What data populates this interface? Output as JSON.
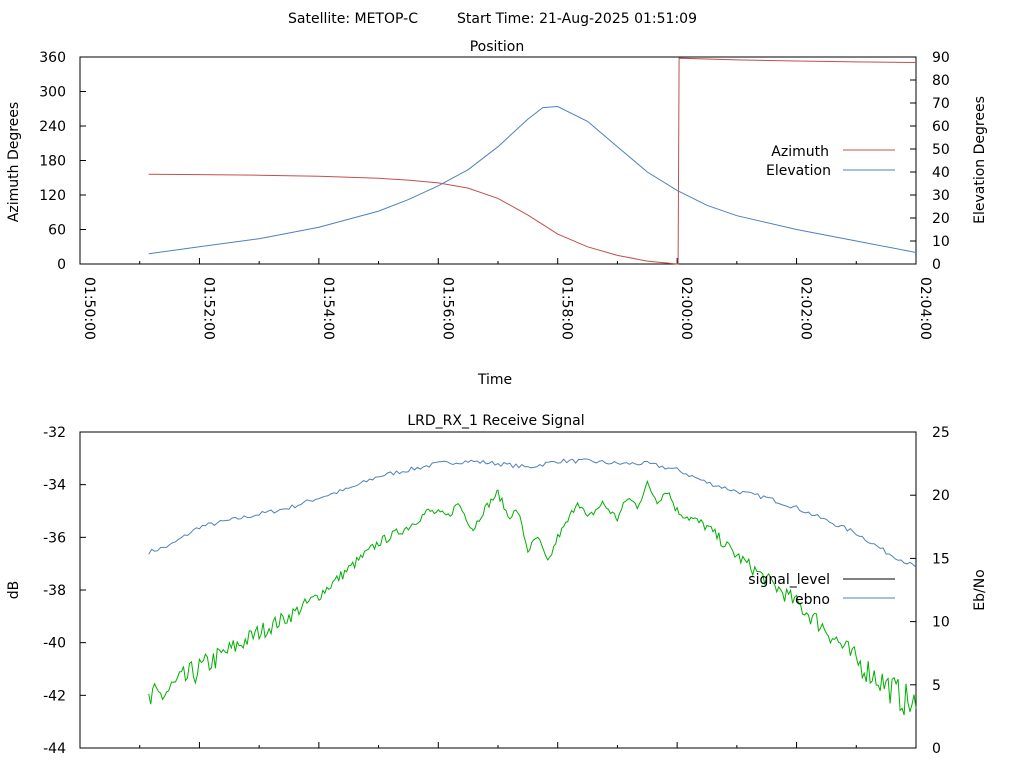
{
  "header": {
    "satellite_text": "Satellite: METOP-C",
    "start_time_text": "Start Time: 21-Aug-2025 01:51:09"
  },
  "colors": {
    "azimuth": "#c0504d",
    "elevation": "#4f81bd",
    "signal_level": "#000000",
    "ebno": "#4f81bd",
    "green_trace": "#00b000",
    "axis": "#000000",
    "background": "#ffffff"
  },
  "chart_data": [
    {
      "type": "line",
      "title": "Position",
      "xlabel": "Time",
      "ylabel": "Azimuth Degrees",
      "y2label": "Elevation Degrees",
      "xlim": [
        "01:50:00",
        "02:04:00"
      ],
      "ylim": [
        0,
        360
      ],
      "y2lim": [
        0,
        90
      ],
      "x_ticks": [
        "01:50:00",
        "01:52:00",
        "01:54:00",
        "01:56:00",
        "01:58:00",
        "02:00:00",
        "02:02:00",
        "02:04:00"
      ],
      "y_ticks": [
        "0",
        "60",
        "120",
        "180",
        "240",
        "300",
        "360"
      ],
      "y2_ticks": [
        "0",
        "10",
        "20",
        "30",
        "40",
        "50",
        "60",
        "70",
        "80",
        "90"
      ],
      "grid": false,
      "legend_position": "right",
      "series": [
        {
          "name": "Azimuth",
          "axis": "left",
          "color": "#c0504d",
          "points": [
            [
              "01:51:09",
              156
            ],
            [
              "01:52:00",
              155.5
            ],
            [
              "01:53:00",
              154.5
            ],
            [
              "01:54:00",
              152.5
            ],
            [
              "01:55:00",
              149
            ],
            [
              "01:55:30",
              146
            ],
            [
              "01:56:00",
              141
            ],
            [
              "01:56:30",
              132
            ],
            [
              "01:57:00",
              114
            ],
            [
              "01:57:30",
              85
            ],
            [
              "01:58:00",
              52
            ],
            [
              "01:58:30",
              30
            ],
            [
              "01:59:00",
              15
            ],
            [
              "01:59:30",
              5
            ],
            [
              "02:00:00",
              0
            ],
            [
              "02:00:01",
              0
            ],
            [
              "02:00:02",
              358
            ],
            [
              "02:01:00",
              355
            ],
            [
              "02:02:00",
              353
            ],
            [
              "02:03:00",
              351.5
            ],
            [
              "02:04:00",
              350.5
            ]
          ]
        },
        {
          "name": "Elevation",
          "axis": "right",
          "color": "#4f81bd",
          "points": [
            [
              "01:51:09",
              4.5
            ],
            [
              "01:52:00",
              7.5
            ],
            [
              "01:53:00",
              11
            ],
            [
              "01:54:00",
              16
            ],
            [
              "01:55:00",
              23
            ],
            [
              "01:55:30",
              28
            ],
            [
              "01:56:00",
              34
            ],
            [
              "01:56:30",
              41
            ],
            [
              "01:57:00",
              51
            ],
            [
              "01:57:30",
              63
            ],
            [
              "01:57:45",
              68
            ],
            [
              "01:58:00",
              68.5
            ],
            [
              "01:58:30",
              62
            ],
            [
              "01:59:00",
              51
            ],
            [
              "01:59:30",
              40
            ],
            [
              "02:00:00",
              32
            ],
            [
              "02:00:30",
              25.5
            ],
            [
              "02:01:00",
              21
            ],
            [
              "02:02:00",
              15
            ],
            [
              "02:03:00",
              10
            ],
            [
              "02:04:00",
              5
            ]
          ]
        }
      ]
    },
    {
      "type": "line",
      "title": "LRD_RX_1 Receive Signal",
      "xlabel": "",
      "ylabel": "dB",
      "y2label": "Eb/No",
      "xlim": [
        "01:50:00",
        "02:04:00"
      ],
      "ylim": [
        -44,
        -32
      ],
      "y2lim": [
        0,
        25
      ],
      "y_ticks": [
        "-44",
        "-42",
        "-40",
        "-38",
        "-36",
        "-34",
        "-32"
      ],
      "y2_ticks": [
        "0",
        "5",
        "10",
        "15",
        "20",
        "25"
      ],
      "grid": false,
      "legend_position": "right",
      "series": [
        {
          "name": "signal_level",
          "axis": "left",
          "color": "#000000",
          "points": []
        },
        {
          "name": "ebno",
          "axis": "right",
          "color": "#4f81bd",
          "points": [
            [
              "01:51:09",
              15.5
            ],
            [
              "01:51:30",
              16
            ],
            [
              "01:52:00",
              17.5
            ],
            [
              "01:52:30",
              18
            ],
            [
              "01:53:00",
              18.5
            ],
            [
              "01:53:30",
              19
            ],
            [
              "01:54:00",
              19.8
            ],
            [
              "01:54:30",
              20.5
            ],
            [
              "01:55:00",
              21.5
            ],
            [
              "01:55:30",
              22
            ],
            [
              "01:56:00",
              22.5
            ],
            [
              "01:56:30",
              22.7
            ],
            [
              "01:57:00",
              22.5
            ],
            [
              "01:57:30",
              22.2
            ],
            [
              "01:58:00",
              22.7
            ],
            [
              "01:58:30",
              22.7
            ],
            [
              "01:59:00",
              22.5
            ],
            [
              "01:59:30",
              22.5
            ],
            [
              "02:00:00",
              22
            ],
            [
              "02:00:30",
              21
            ],
            [
              "02:01:00",
              20.3
            ],
            [
              "02:01:30",
              19.8
            ],
            [
              "02:02:00",
              19
            ],
            [
              "02:02:30",
              18
            ],
            [
              "02:03:00",
              17
            ],
            [
              "02:03:30",
              15.5
            ],
            [
              "02:04:00",
              14.3
            ]
          ]
        },
        {
          "name": "",
          "axis": "left",
          "color": "#00b000",
          "points": [
            [
              "01:51:09",
              -42.3
            ],
            [
              "01:51:30",
              -41.8
            ],
            [
              "01:52:00",
              -41
            ],
            [
              "01:52:30",
              -40.3
            ],
            [
              "01:53:00",
              -39.6
            ],
            [
              "01:53:30",
              -39
            ],
            [
              "01:54:00",
              -38.2
            ],
            [
              "01:54:30",
              -37.2
            ],
            [
              "01:55:00",
              -36.2
            ],
            [
              "01:55:30",
              -35.6
            ],
            [
              "01:55:50",
              -35
            ],
            [
              "01:56:10",
              -35.2
            ],
            [
              "01:56:20",
              -34.7
            ],
            [
              "01:56:35",
              -35.7
            ],
            [
              "01:56:45",
              -35
            ],
            [
              "01:57:00",
              -34.3
            ],
            [
              "01:57:10",
              -35.2
            ],
            [
              "01:57:20",
              -35
            ],
            [
              "01:57:30",
              -36.5
            ],
            [
              "01:57:40",
              -36
            ],
            [
              "01:57:50",
              -37
            ],
            [
              "01:58:00",
              -36
            ],
            [
              "01:58:10",
              -35.4
            ],
            [
              "01:58:20",
              -34.6
            ],
            [
              "01:58:30",
              -35.3
            ],
            [
              "01:58:45",
              -34.7
            ],
            [
              "01:59:00",
              -35.3
            ],
            [
              "01:59:10",
              -34.5
            ],
            [
              "01:59:20",
              -34.8
            ],
            [
              "01:59:30",
              -34
            ],
            [
              "01:59:40",
              -34.6
            ],
            [
              "01:59:50",
              -34.2
            ],
            [
              "02:00:00",
              -35
            ],
            [
              "02:00:30",
              -35.6
            ],
            [
              "02:01:00",
              -36.7
            ],
            [
              "02:01:30",
              -37.6
            ],
            [
              "02:02:00",
              -38.5
            ],
            [
              "02:02:30",
              -39.5
            ],
            [
              "02:03:00",
              -40.7
            ],
            [
              "02:03:30",
              -41.6
            ],
            [
              "02:04:00",
              -42.5
            ]
          ]
        }
      ]
    }
  ]
}
